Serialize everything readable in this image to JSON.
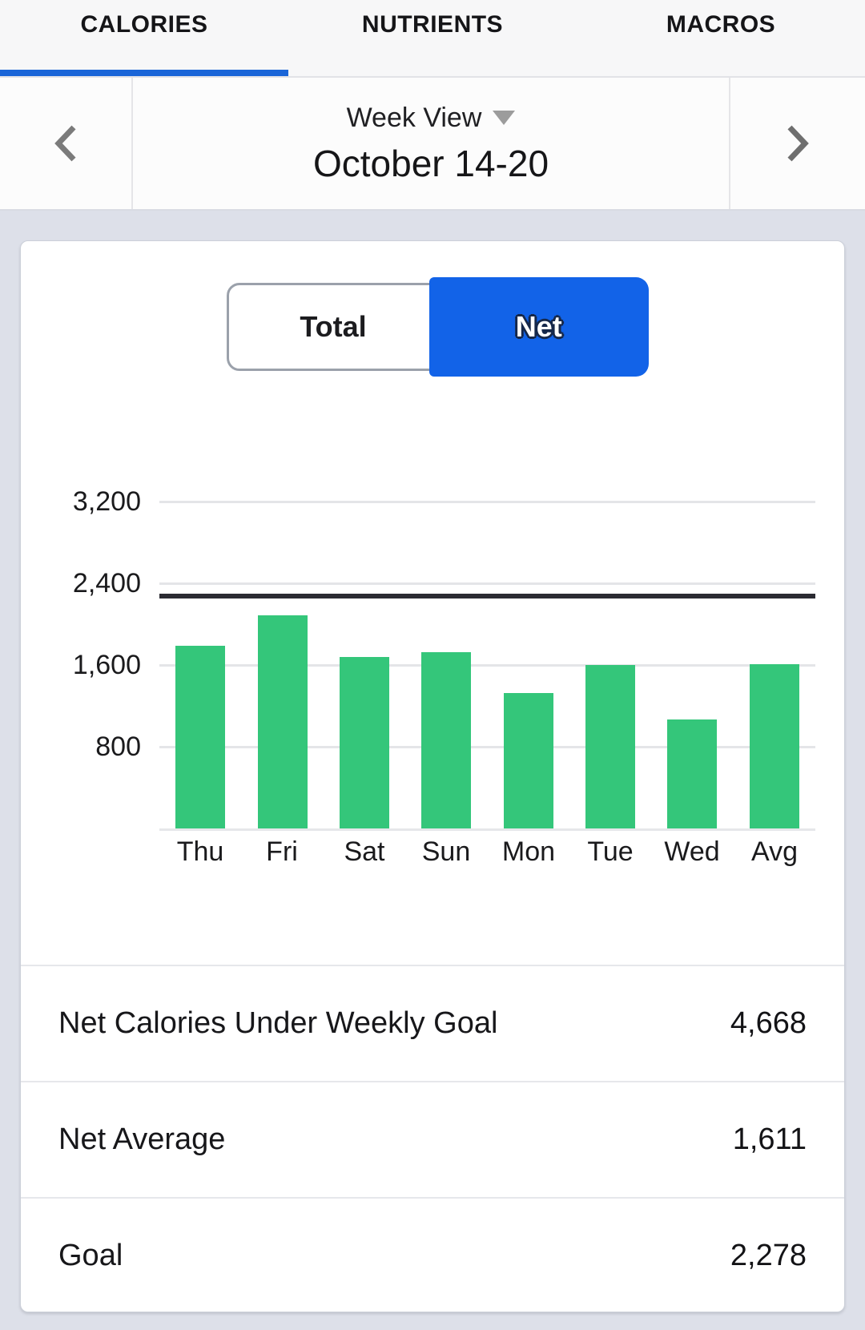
{
  "tabs": {
    "items": [
      {
        "label": "CALORIES",
        "active": true
      },
      {
        "label": "NUTRIENTS",
        "active": false
      },
      {
        "label": "MACROS",
        "active": false
      }
    ]
  },
  "week_nav": {
    "view_label": "Week View",
    "date_range": "October 14-20",
    "prev_icon": "chevron-left",
    "next_icon": "chevron-right",
    "caret_icon": "triangle-down"
  },
  "toggle": {
    "options": [
      {
        "label": "Total",
        "selected": false
      },
      {
        "label": "Net",
        "selected": true
      }
    ]
  },
  "chart_data": {
    "type": "bar",
    "categories": [
      "Thu",
      "Fri",
      "Sat",
      "Sun",
      "Mon",
      "Tue",
      "Wed",
      "Avg"
    ],
    "values": [
      1790,
      2090,
      1680,
      1725,
      1325,
      1600,
      1070,
      1611
    ],
    "goal_line": 2278,
    "y_ticks": [
      800,
      1600,
      2400,
      3200
    ],
    "ylim": [
      0,
      3600
    ],
    "grid": true,
    "bar_color": "#34c67a",
    "goal_line_color": "#2b2b32",
    "title": "",
    "xlabel": "",
    "ylabel": ""
  },
  "stats": {
    "rows": [
      {
        "label": "Net Calories Under Weekly Goal",
        "value": "4,668"
      },
      {
        "label": "Net Average",
        "value": "1,611"
      },
      {
        "label": "Goal",
        "value": "2,278"
      }
    ]
  },
  "colors": {
    "accent_blue": "#1263e8",
    "underline_blue": "#1a65d8",
    "bar_green": "#34c67a",
    "page_bg": "#dde0e9"
  }
}
